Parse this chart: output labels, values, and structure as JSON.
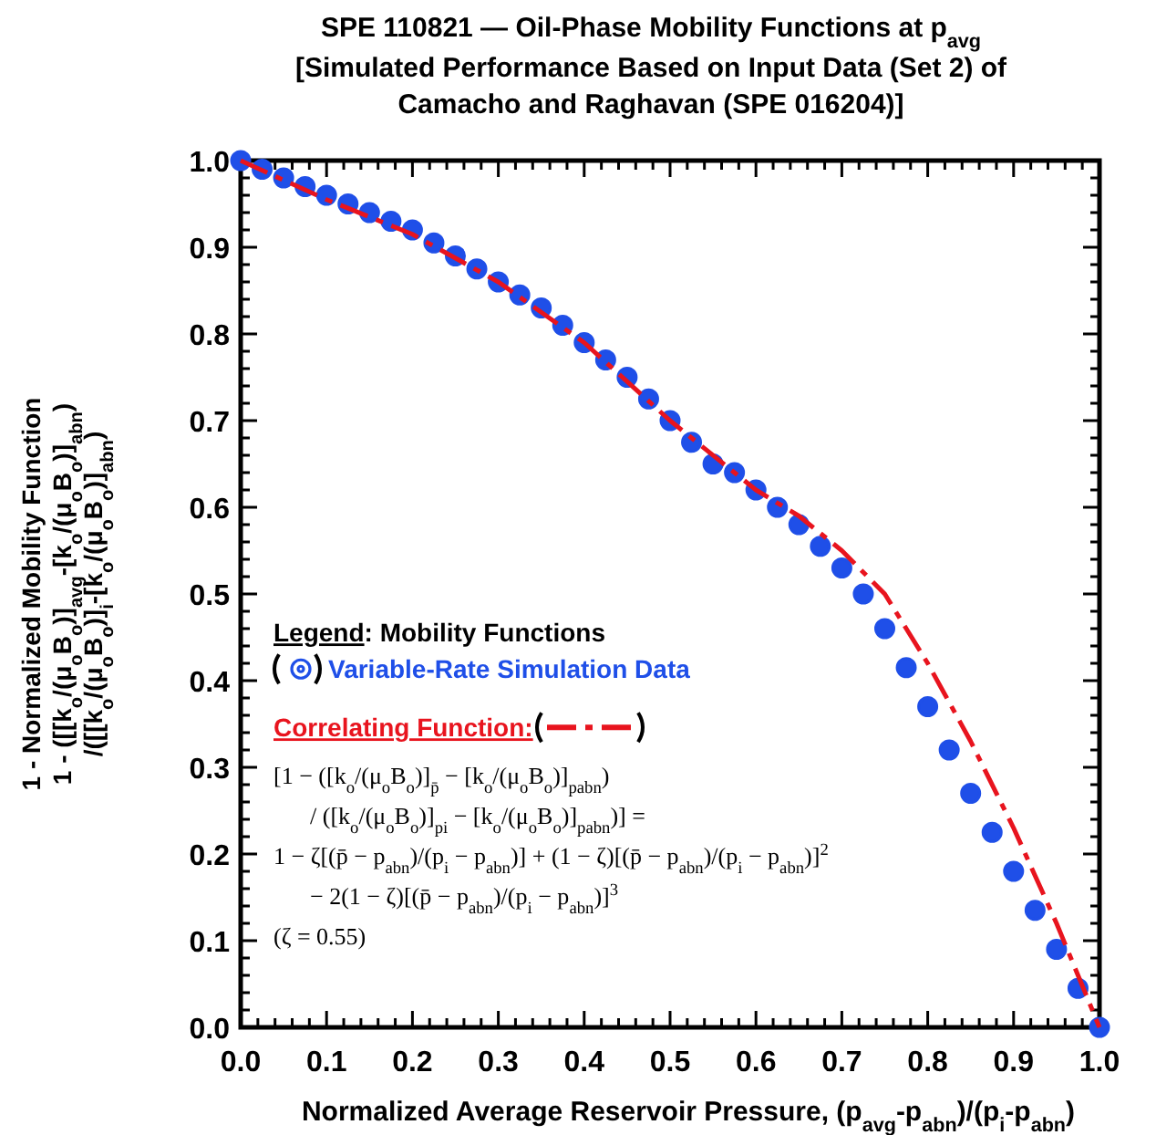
{
  "chart_data": {
    "type": "scatter",
    "title": "SPE 110821 — Oil-Phase Mobility Functions at p$_{avg}$",
    "subtitle": "[Simulated Performance Based on Input Data (Set 2) of\nCamacho and Raghavan (SPE 016204)]",
    "xlabel": "Normalized Average Reservoir Pressure, (p$_{avg}$-p$_{abn}$)/(p$_{i}$-p$_{abn}$)",
    "ylabel": "1 - Normalized Mobility Function\n1 - ([[k$_{o}$/(μ$_{o}$B$_{o}$)]$_{avg}$-[k$_{o}$/(μ$_{o}$B$_{o}$)]$_{abn}$)\n/([[k$_{o}$/(μ$_{o}$B$_{o}$)]$_{i}$-[k$_{o}$/(μ$_{o}$B$_{o}$)]$_{abn}$)",
    "legend_title": "Legend: Mobility Functions",
    "legend": "left",
    "grid": false,
    "xlim": [
      0,
      1
    ],
    "ylim": [
      0,
      1
    ],
    "xticks": [
      {
        "value": 0,
        "label": "0.0"
      },
      {
        "value": 0.02,
        "label": null
      },
      {
        "value": 0.04,
        "label": null
      },
      {
        "value": 0.06,
        "label": null
      },
      {
        "value": 0.08,
        "label": null
      },
      0.1,
      {
        "value": 0.12,
        "label": null
      },
      {
        "value": 0.14,
        "label": null
      },
      {
        "value": 0.16,
        "label": null
      },
      {
        "value": 0.18,
        "label": null
      },
      0.2,
      {
        "value": 0.22,
        "label": null
      },
      {
        "value": 0.24,
        "label": null
      },
      {
        "value": 0.26,
        "label": null
      },
      {
        "value": 0.28,
        "label": null
      },
      0.3,
      {
        "value": 0.32,
        "label": null
      },
      {
        "value": 0.34,
        "label": null
      },
      {
        "value": 0.36,
        "label": null
      },
      {
        "value": 0.38,
        "label": null
      },
      0.4,
      {
        "value": 0.42,
        "label": null
      },
      {
        "value": 0.44,
        "label": null
      },
      {
        "value": 0.46,
        "label": null
      },
      {
        "value": 0.48,
        "label": null
      },
      0.5,
      {
        "value": 0.52,
        "label": null
      },
      {
        "value": 0.54,
        "label": null
      },
      {
        "value": 0.56,
        "label": null
      },
      {
        "value": 0.58,
        "label": null
      },
      0.6,
      {
        "value": 0.62,
        "label": null
      },
      {
        "value": 0.64,
        "label": null
      },
      {
        "value": 0.66,
        "label": null
      },
      {
        "value": 0.68,
        "label": null
      },
      0.7,
      {
        "value": 0.72,
        "label": null
      },
      {
        "value": 0.74,
        "label": null
      },
      {
        "value": 0.76,
        "label": null
      },
      {
        "value": 0.78,
        "label": null
      },
      0.8,
      {
        "value": 0.82,
        "label": null
      },
      {
        "value": 0.84,
        "label": null
      },
      {
        "value": 0.86,
        "label": null
      },
      {
        "value": 0.88,
        "label": null
      },
      0.9,
      {
        "value": 0.92,
        "label": null
      },
      {
        "value": 0.94,
        "label": null
      },
      {
        "value": 0.96,
        "label": null
      },
      {
        "value": 0.98,
        "label": null
      },
      {
        "value": 1,
        "label": "1.0"
      }
    ],
    "yticks": [
      {
        "value": 0,
        "label": "0.0"
      },
      {
        "value": 0.02,
        "label": null
      },
      {
        "value": 0.04,
        "label": null
      },
      {
        "value": 0.06,
        "label": null
      },
      {
        "value": 0.08,
        "label": null
      },
      0.1,
      {
        "value": 0.12,
        "label": null
      },
      {
        "value": 0.14,
        "label": null
      },
      {
        "value": 0.16,
        "label": null
      },
      {
        "value": 0.18,
        "label": null
      },
      0.2,
      {
        "value": 0.22,
        "label": null
      },
      {
        "value": 0.24,
        "label": null
      },
      {
        "value": 0.26,
        "label": null
      },
      {
        "value": 0.28,
        "label": null
      },
      0.3,
      {
        "value": 0.32,
        "label": null
      },
      {
        "value": 0.34,
        "label": null
      },
      {
        "value": 0.36,
        "label": null
      },
      {
        "value": 0.38,
        "label": null
      },
      0.4,
      {
        "value": 0.42,
        "label": null
      },
      {
        "value": 0.44,
        "label": null
      },
      {
        "value": 0.46,
        "label": null
      },
      {
        "value": 0.48,
        "label": null
      },
      0.5,
      {
        "value": 0.52,
        "label": null
      },
      {
        "value": 0.54,
        "label": null
      },
      {
        "value": 0.56,
        "label": null
      },
      {
        "value": 0.58,
        "label": null
      },
      0.6,
      {
        "value": 0.62,
        "label": null
      },
      {
        "value": 0.64,
        "label": null
      },
      {
        "value": 0.66,
        "label": null
      },
      {
        "value": 0.68,
        "label": null
      },
      0.7,
      {
        "value": 0.72,
        "label": null
      },
      {
        "value": 0.74,
        "label": null
      },
      {
        "value": 0.76,
        "label": null
      },
      {
        "value": 0.78,
        "label": null
      },
      0.8,
      {
        "value": 0.82,
        "label": null
      },
      {
        "value": 0.84,
        "label": null
      },
      {
        "value": 0.86,
        "label": null
      },
      {
        "value": 0.88,
        "label": null
      },
      0.9,
      {
        "value": 0.92,
        "label": null
      },
      {
        "value": 0.94,
        "label": null
      },
      {
        "value": 0.96,
        "label": null
      },
      {
        "value": 0.98,
        "label": null
      },
      {
        "value": 1,
        "label": "1.0"
      }
    ],
    "series": [
      {
        "name": "Variable-Rate Simulation Data",
        "color": "#1f4fe8",
        "marker": "circle",
        "x": [
          0,
          0.025,
          0.05,
          0.075,
          0.1,
          0.125,
          0.15,
          0.175,
          0.2,
          0.225,
          0.25,
          0.275,
          0.3,
          0.325,
          0.35,
          0.375,
          0.4,
          0.425,
          0.45,
          0.475,
          0.5,
          0.525,
          0.55,
          0.575,
          0.6,
          0.625,
          0.65,
          0.675,
          0.7,
          0.725,
          0.75,
          0.775,
          0.8,
          0.825,
          0.85,
          0.875,
          0.9,
          0.925,
          0.95,
          0.975,
          1
        ],
        "values": [
          1,
          0.99,
          0.98,
          0.97,
          0.96,
          0.95,
          0.94,
          0.93,
          0.92,
          0.905,
          0.89,
          0.875,
          0.86,
          0.845,
          0.83,
          0.81,
          0.79,
          0.77,
          0.75,
          0.725,
          0.7,
          0.675,
          0.65,
          0.64,
          0.62,
          0.6,
          0.58,
          0.555,
          0.53,
          0.5,
          0.46,
          0.415,
          0.37,
          0.32,
          0.27,
          0.225,
          0.18,
          0.135,
          0.09,
          0.045,
          0
        ]
      },
      {
        "name": "Correlating Function:",
        "type": "line",
        "color": "#e8141e",
        "line_style": "dashed",
        "x": [
          0,
          0.1,
          0.2,
          0.3,
          0.4,
          0.5,
          0.6,
          0.65,
          0.7,
          0.75,
          0.8,
          0.85,
          0.9,
          0.95,
          1
        ],
        "values": [
          1,
          0.955,
          0.915,
          0.86,
          0.79,
          0.7,
          0.62,
          0.59,
          0.55,
          0.5,
          0.42,
          0.33,
          0.23,
          0.12,
          0
        ]
      }
    ],
    "annotations": [
      "[1 − ([k$_{o}$/(μ$_{o}$B$_{o}$)]$_{p̄}$ − [k$_{o}$/(μ$_{o}$B$_{o}$)]$_{pabn}$)",
      "/ ([k$_{o}$/(μ$_{o}$B$_{o}$)]$_{pi}$ − [k$_{o}$/(μ$_{o}$B$_{o}$)]$_{pabn}$)] =",
      "1 − ζ[(p̄ − p$_{abn}$)/(p$_{i}$ − p$_{abn}$)] + (1 − ζ)[(p̄ − p$_{abn}$)/(p$_{i}$ − p$_{abn}$)]$^{2}$",
      "− 2(1 − ζ)[(p̄ − p$_{abn}$)/(p$_{i}$ − p$_{abn}$)]$^{3}$",
      "(ζ = 0.55)"
    ]
  }
}
